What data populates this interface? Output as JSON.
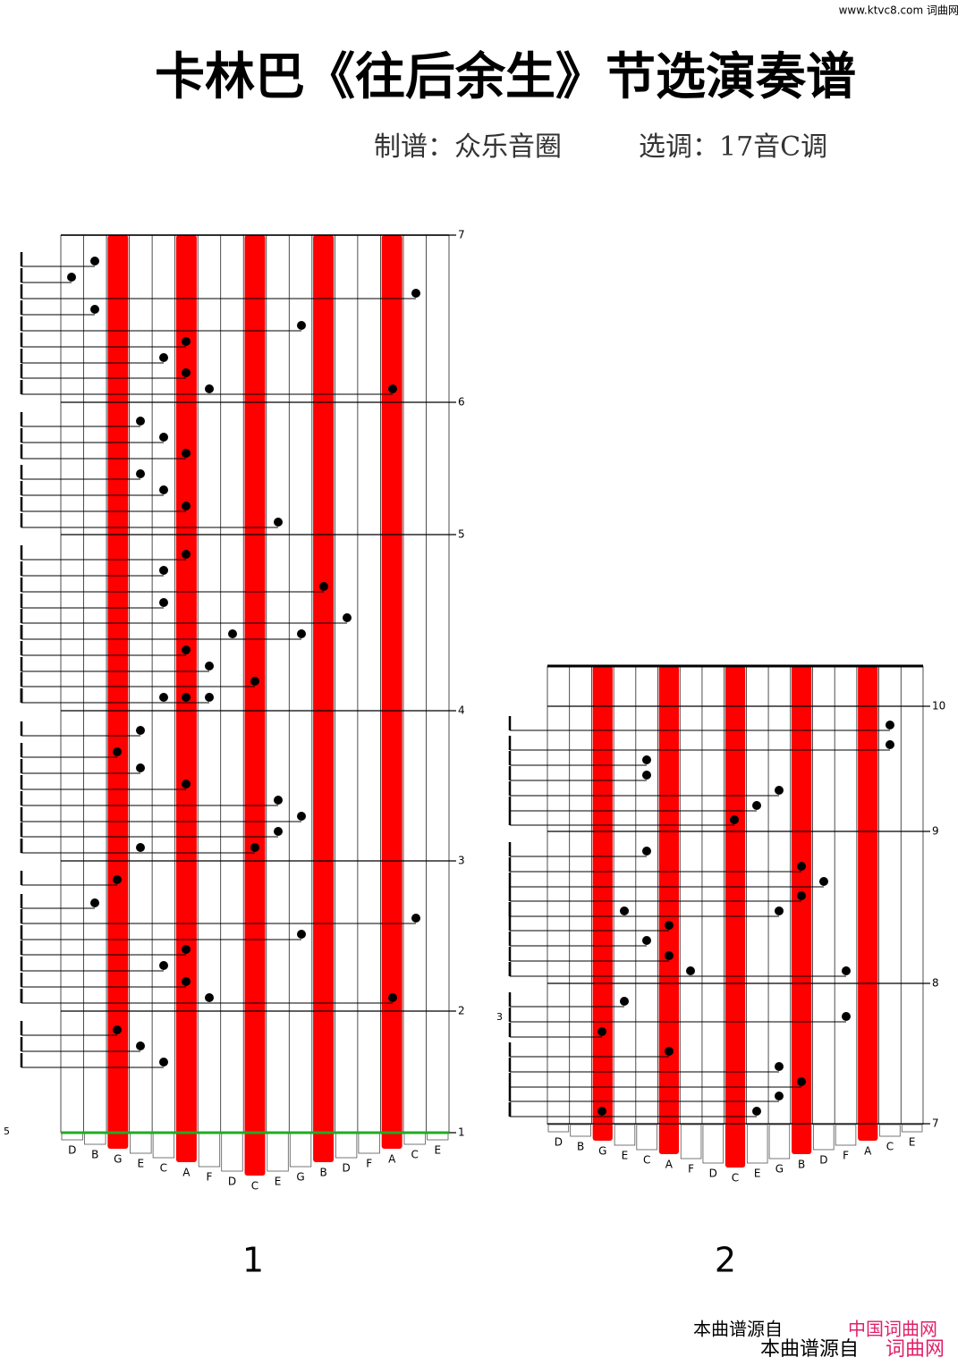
{
  "watermark": "www.ktvc8.com 词曲网",
  "header": {
    "title": "卡林巴《往后余生》节选演奏谱",
    "credit": "制谱：众乐音圈",
    "key": "选调：17音C调"
  },
  "panels": [
    {
      "label": "1",
      "keys": [
        "D",
        "B",
        "G",
        "E",
        "C",
        "A",
        "F",
        "D",
        "C",
        "E",
        "G",
        "B",
        "D",
        "F",
        "A",
        "C",
        "E"
      ],
      "measures": [
        7,
        6,
        5,
        4,
        3,
        2,
        1
      ],
      "side_number": "5"
    },
    {
      "label": "2",
      "keys": [
        "D",
        "B",
        "G",
        "E",
        "C",
        "A",
        "F",
        "D",
        "C",
        "E",
        "G",
        "B",
        "D",
        "F",
        "A",
        "C",
        "E"
      ],
      "measures": [
        10,
        9,
        8,
        7
      ],
      "triplet": "3"
    }
  ],
  "footer": {
    "source_top": "本曲谱源自",
    "site_top": "中国词曲网",
    "source": "本曲谱源自",
    "site": "词曲网"
  }
}
